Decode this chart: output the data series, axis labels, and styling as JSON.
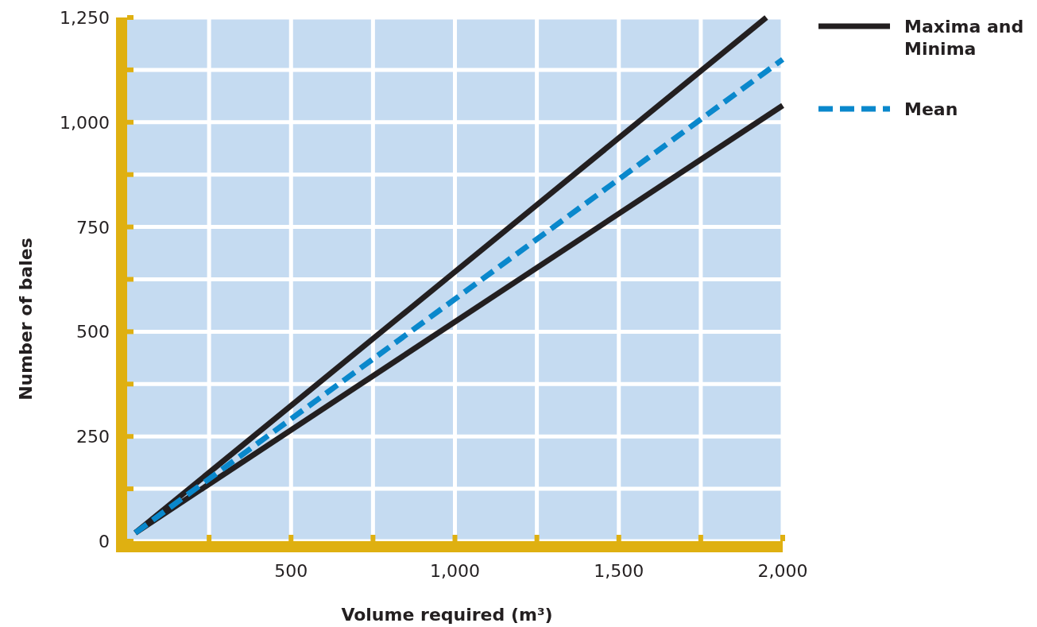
{
  "chart_data": {
    "type": "line",
    "xlabel": "Volume required (m³)",
    "ylabel": "Number of bales",
    "xlim": [
      0,
      2000
    ],
    "ylim": [
      0,
      1250
    ],
    "xticks": [
      {
        "value": 250,
        "label": null
      },
      500,
      {
        "value": 750,
        "label": null
      },
      {
        "value": 1000,
        "label": "1,000"
      },
      {
        "value": 1250,
        "label": null
      },
      {
        "value": 1500,
        "label": "1,500"
      },
      {
        "value": 1750,
        "label": null
      },
      {
        "value": 2000,
        "label": "2,000"
      }
    ],
    "yticks": [
      0,
      {
        "value": 125,
        "label": null
      },
      250,
      {
        "value": 375,
        "label": null
      },
      500,
      {
        "value": 625,
        "label": null
      },
      750,
      {
        "value": 875,
        "label": null
      },
      {
        "value": 1000,
        "label": "1,000"
      },
      {
        "value": 1125,
        "label": null
      },
      {
        "value": 1250,
        "label": "1,250"
      }
    ],
    "grid": true,
    "legend": "top right",
    "series": [
      {
        "name": "Maxima and Minima",
        "color": "#231f20",
        "x": [
          25,
          1950
        ],
        "values": [
          20,
          1250
        ],
        "line_style": "solid"
      },
      {
        "color": "#231f20",
        "x": [
          25,
          2000
        ],
        "values": [
          20,
          1040
        ],
        "line_style": "solid"
      },
      {
        "name": "Mean",
        "color": "#0a88cc",
        "x": [
          25,
          2000
        ],
        "values": [
          20,
          1150
        ],
        "line_style": "dashed"
      }
    ]
  }
}
